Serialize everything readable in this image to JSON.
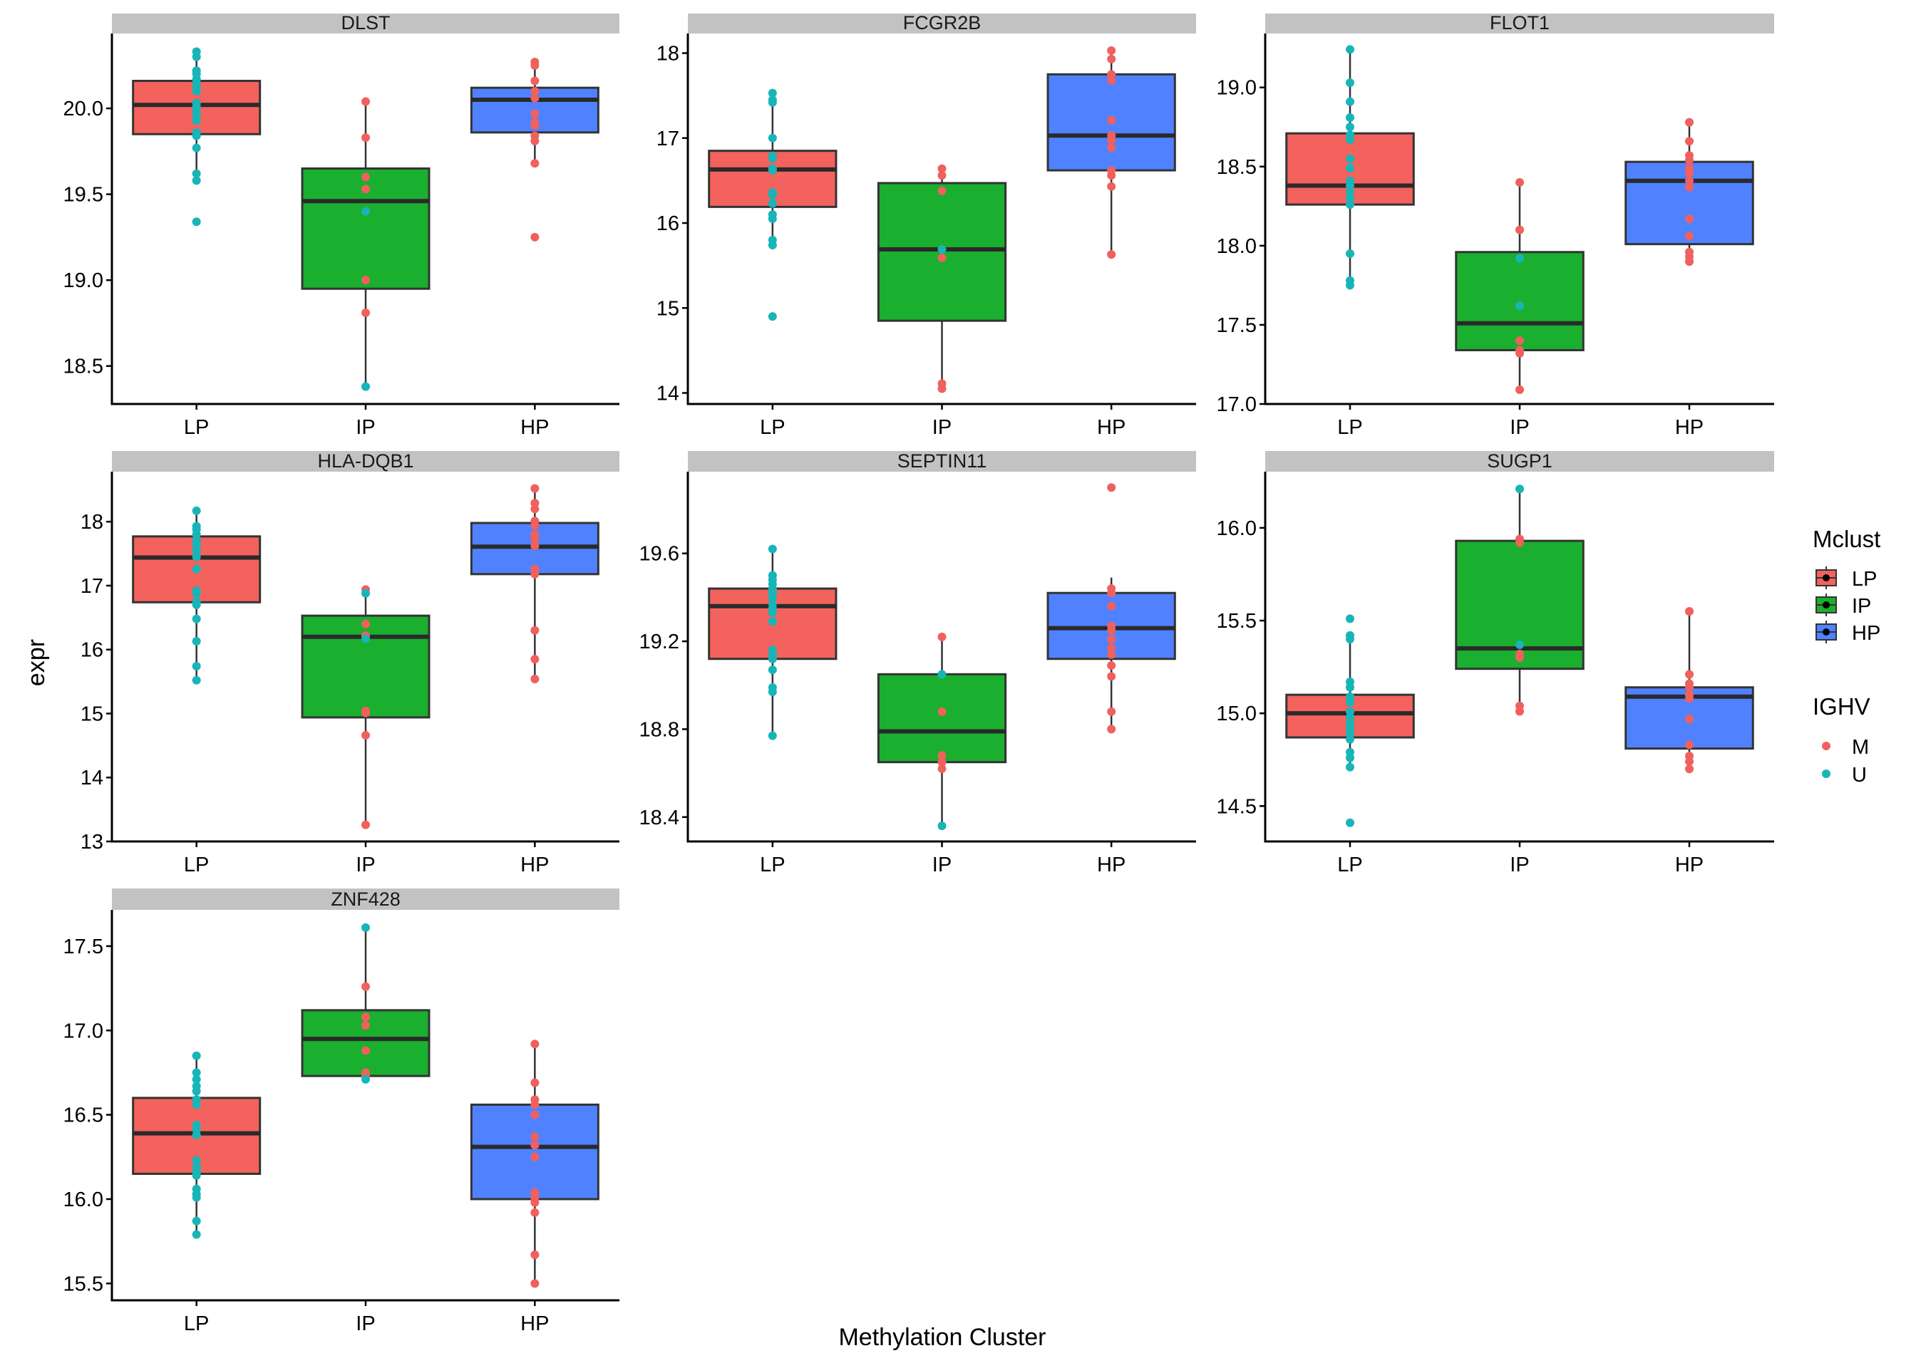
{
  "chart_data": {
    "type": "box",
    "xlabel": "Methylation Cluster",
    "ylabel": "expr",
    "categories": [
      "LP",
      "IP",
      "HP"
    ],
    "fill_colors": {
      "LP": "#F3625D",
      "IP": "#1AAF2E",
      "HP": "#5082FF"
    },
    "point_colors": {
      "M": "#F0605D",
      "U": "#17B5B8"
    },
    "legends": [
      {
        "title": "Mclust",
        "kind": "box",
        "entries": [
          "LP",
          "IP",
          "HP"
        ]
      },
      {
        "title": "IGHV",
        "kind": "point",
        "entries": [
          "M",
          "U"
        ]
      }
    ],
    "panels": [
      {
        "title": "DLST",
        "ylim": [
          18.279,
          20.436
        ],
        "yticks": [
          "18.5",
          "19.0",
          "19.5",
          "20.0"
        ],
        "boxes": [
          {
            "cat": "LP",
            "lower": 19.61,
            "q1": 19.85,
            "median": 20.02,
            "q3": 20.16,
            "upper": 20.33
          },
          {
            "cat": "IP",
            "lower": 18.38,
            "q1": 18.95,
            "median": 19.46,
            "q3": 19.65,
            "upper": 20.04
          },
          {
            "cat": "HP",
            "lower": 19.68,
            "q1": 19.86,
            "median": 20.05,
            "q3": 20.12,
            "upper": 20.27
          }
        ],
        "points": [
          {
            "cat": "LP",
            "ighv": "U",
            "values": [
              20.33,
              20.3,
              20.22,
              20.2,
              20.17,
              20.15,
              20.12,
              20.1,
              20.03,
              20.01,
              19.98,
              19.96,
              19.93,
              19.86,
              19.84,
              19.77,
              19.62,
              19.58,
              19.34
            ]
          },
          {
            "cat": "IP",
            "ighv": "M",
            "values": [
              20.04,
              19.83,
              19.6,
              19.53,
              19.0,
              18.81
            ]
          },
          {
            "cat": "IP",
            "ighv": "U",
            "values": [
              19.4,
              18.38
            ]
          },
          {
            "cat": "HP",
            "ighv": "M",
            "values": [
              20.27,
              20.25,
              20.16,
              20.1,
              20.06,
              19.97,
              19.92,
              19.9,
              19.84,
              19.81,
              19.68,
              19.25
            ]
          }
        ]
      },
      {
        "title": "FCGR2B",
        "ylim": [
          13.87,
          18.231
        ],
        "yticks": [
          "14",
          "15",
          "16",
          "17",
          "18"
        ],
        "boxes": [
          {
            "cat": "LP",
            "lower": 15.73,
            "q1": 16.19,
            "median": 16.63,
            "q3": 16.85,
            "upper": 17.53
          },
          {
            "cat": "IP",
            "lower": 14.05,
            "q1": 14.85,
            "median": 15.69,
            "q3": 16.47,
            "upper": 16.64
          },
          {
            "cat": "HP",
            "lower": 15.63,
            "q1": 16.62,
            "median": 17.03,
            "q3": 17.75,
            "upper": 18.03
          }
        ],
        "points": [
          {
            "cat": "LP",
            "ighv": "U",
            "values": [
              17.53,
              17.45,
              17.42,
              17.0,
              16.79,
              16.76,
              16.64,
              16.62,
              16.36,
              16.33,
              16.23,
              16.1,
              16.05,
              15.8,
              15.74,
              14.9
            ]
          },
          {
            "cat": "IP",
            "ighv": "M",
            "values": [
              16.64,
              16.56,
              16.38,
              15.59,
              14.11,
              14.05
            ]
          },
          {
            "cat": "IP",
            "ighv": "U",
            "values": [
              15.69
            ]
          },
          {
            "cat": "HP",
            "ighv": "M",
            "values": [
              18.03,
              17.93,
              17.75,
              17.68,
              17.21,
              17.03,
              16.98,
              16.89,
              16.62,
              16.56,
              16.43,
              15.63
            ]
          }
        ]
      },
      {
        "title": "FLOT1",
        "ylim": [
          17.0,
          19.341
        ],
        "yticks": [
          "17.0",
          "17.5",
          "18.0",
          "18.5",
          "19.0"
        ],
        "boxes": [
          {
            "cat": "LP",
            "lower": 17.75,
            "q1": 18.26,
            "median": 18.38,
            "q3": 18.71,
            "upper": 19.24
          },
          {
            "cat": "IP",
            "lower": 17.09,
            "q1": 17.34,
            "median": 17.51,
            "q3": 17.96,
            "upper": 18.4
          },
          {
            "cat": "HP",
            "lower": 17.9,
            "q1": 18.01,
            "median": 18.41,
            "q3": 18.53,
            "upper": 18.78
          }
        ],
        "points": [
          {
            "cat": "LP",
            "ighv": "U",
            "values": [
              19.24,
              19.03,
              18.91,
              18.81,
              18.75,
              18.7,
              18.67,
              18.55,
              18.49,
              18.41,
              18.38,
              18.34,
              18.3,
              18.26,
              17.95,
              17.78,
              17.75
            ]
          },
          {
            "cat": "IP",
            "ighv": "M",
            "values": [
              18.4,
              18.1,
              17.4,
              17.34,
              17.32,
              17.09
            ]
          },
          {
            "cat": "IP",
            "ighv": "U",
            "values": [
              17.92,
              17.62
            ]
          },
          {
            "cat": "HP",
            "ighv": "M",
            "values": [
              18.78,
              18.66,
              18.57,
              18.54,
              18.49,
              18.46,
              18.41,
              18.37,
              18.17,
              18.06,
              17.96,
              17.93,
              17.9
            ]
          }
        ]
      },
      {
        "title": "HLA-DQB1",
        "ylim": [
          13.0,
          18.782
        ],
        "yticks": [
          "13",
          "14",
          "15",
          "16",
          "17",
          "18"
        ],
        "boxes": [
          {
            "cat": "LP",
            "lower": 15.52,
            "q1": 16.74,
            "median": 17.44,
            "q3": 17.77,
            "upper": 18.17
          },
          {
            "cat": "IP",
            "lower": 13.26,
            "q1": 14.94,
            "median": 16.2,
            "q3": 16.53,
            "upper": 16.94
          },
          {
            "cat": "HP",
            "lower": 15.54,
            "q1": 17.18,
            "median": 17.61,
            "q3": 17.98,
            "upper": 18.52
          }
        ],
        "points": [
          {
            "cat": "LP",
            "ighv": "U",
            "values": [
              18.17,
              17.93,
              17.88,
              17.8,
              17.7,
              17.63,
              17.55,
              17.45,
              17.26,
              16.92,
              16.88,
              16.75,
              16.7,
              16.48,
              16.13,
              15.74,
              15.52
            ]
          },
          {
            "cat": "IP",
            "ighv": "M",
            "values": [
              16.94,
              16.4,
              16.22,
              15.04,
              15.01,
              14.66,
              13.26
            ]
          },
          {
            "cat": "IP",
            "ighv": "U",
            "values": [
              16.88,
              16.17
            ]
          },
          {
            "cat": "HP",
            "ighv": "M",
            "values": [
              18.52,
              18.29,
              18.2,
              18.01,
              17.94,
              17.8,
              17.72,
              17.62,
              17.26,
              17.18,
              16.3,
              15.85,
              15.54
            ]
          }
        ]
      },
      {
        "title": "SEPTIN11",
        "ylim": [
          18.289,
          19.972
        ],
        "yticks": [
          "18.4",
          "18.8",
          "19.2",
          "19.6"
        ],
        "boxes": [
          {
            "cat": "LP",
            "lower": 18.77,
            "q1": 19.12,
            "median": 19.36,
            "q3": 19.44,
            "upper": 19.62
          },
          {
            "cat": "IP",
            "lower": 18.36,
            "q1": 18.65,
            "median": 18.79,
            "q3": 19.05,
            "upper": 19.22
          },
          {
            "cat": "HP",
            "lower": 18.8,
            "q1": 19.12,
            "median": 19.26,
            "q3": 19.42,
            "upper": 19.49
          }
        ],
        "points": [
          {
            "cat": "LP",
            "ighv": "U",
            "values": [
              19.62,
              19.5,
              19.48,
              19.46,
              19.44,
              19.42,
              19.4,
              19.37,
              19.35,
              19.33,
              19.29,
              19.16,
              19.14,
              19.12,
              19.07,
              18.99,
              18.97,
              18.77
            ]
          },
          {
            "cat": "IP",
            "ighv": "M",
            "values": [
              19.22,
              18.88,
              18.68,
              18.65,
              18.62
            ]
          },
          {
            "cat": "IP",
            "ighv": "U",
            "values": [
              19.05,
              18.36
            ]
          },
          {
            "cat": "HP",
            "ighv": "M",
            "values": [
              19.9,
              19.44,
              19.42,
              19.36,
              19.27,
              19.25,
              19.21,
              19.17,
              19.14,
              19.09,
              19.04,
              18.88,
              18.8
            ]
          }
        ]
      },
      {
        "title": "SUGP1",
        "ylim": [
          14.309,
          16.303
        ],
        "yticks": [
          "14.5",
          "15.0",
          "15.5",
          "16.0"
        ],
        "boxes": [
          {
            "cat": "LP",
            "lower": 14.71,
            "q1": 14.87,
            "median": 15.0,
            "q3": 15.1,
            "upper": 15.41
          },
          {
            "cat": "IP",
            "lower": 15.01,
            "q1": 15.24,
            "median": 15.35,
            "q3": 15.93,
            "upper": 16.21
          },
          {
            "cat": "HP",
            "lower": 14.7,
            "q1": 14.81,
            "median": 15.09,
            "q3": 15.14,
            "upper": 15.55
          }
        ],
        "points": [
          {
            "cat": "LP",
            "ighv": "U",
            "values": [
              15.51,
              15.42,
              15.4,
              15.17,
              15.14,
              15.09,
              15.06,
              15.01,
              14.98,
              14.95,
              14.92,
              14.89,
              14.86,
              14.79,
              14.76,
              14.71,
              14.41
            ]
          },
          {
            "cat": "IP",
            "ighv": "M",
            "values": [
              15.94,
              15.92,
              15.32,
              15.3,
              15.04,
              15.01
            ]
          },
          {
            "cat": "IP",
            "ighv": "U",
            "values": [
              16.21,
              15.37
            ]
          },
          {
            "cat": "HP",
            "ighv": "M",
            "values": [
              15.55,
              15.21,
              15.16,
              15.14,
              15.1,
              15.08,
              14.97,
              14.83,
              14.77,
              14.74,
              14.7
            ]
          }
        ]
      },
      {
        "title": "ZNF428",
        "ylim": [
          15.4,
          17.715
        ],
        "yticks": [
          "15.5",
          "16.0",
          "16.5",
          "17.0",
          "17.5"
        ],
        "boxes": [
          {
            "cat": "LP",
            "lower": 15.78,
            "q1": 16.15,
            "median": 16.39,
            "q3": 16.6,
            "upper": 16.85
          },
          {
            "cat": "IP",
            "lower": 16.71,
            "q1": 16.73,
            "median": 16.95,
            "q3": 17.12,
            "upper": 17.61
          },
          {
            "cat": "HP",
            "lower": 15.5,
            "q1": 16.0,
            "median": 16.31,
            "q3": 16.56,
            "upper": 16.92
          }
        ],
        "points": [
          {
            "cat": "LP",
            "ighv": "U",
            "values": [
              16.85,
              16.75,
              16.71,
              16.67,
              16.64,
              16.59,
              16.56,
              16.44,
              16.41,
              16.38,
              16.23,
              16.19,
              16.16,
              16.14,
              16.06,
              16.03,
              16.01,
              15.87,
              15.79
            ]
          },
          {
            "cat": "IP",
            "ighv": "M",
            "values": [
              17.26,
              17.08,
              17.03,
              16.88,
              16.75,
              16.73
            ]
          },
          {
            "cat": "IP",
            "ighv": "U",
            "values": [
              17.61,
              16.71
            ]
          },
          {
            "cat": "HP",
            "ighv": "M",
            "values": [
              16.92,
              16.69,
              16.59,
              16.56,
              16.5,
              16.37,
              16.32,
              16.25,
              16.04,
              16.01,
              15.98,
              15.92,
              15.67,
              15.5
            ]
          }
        ]
      }
    ]
  }
}
